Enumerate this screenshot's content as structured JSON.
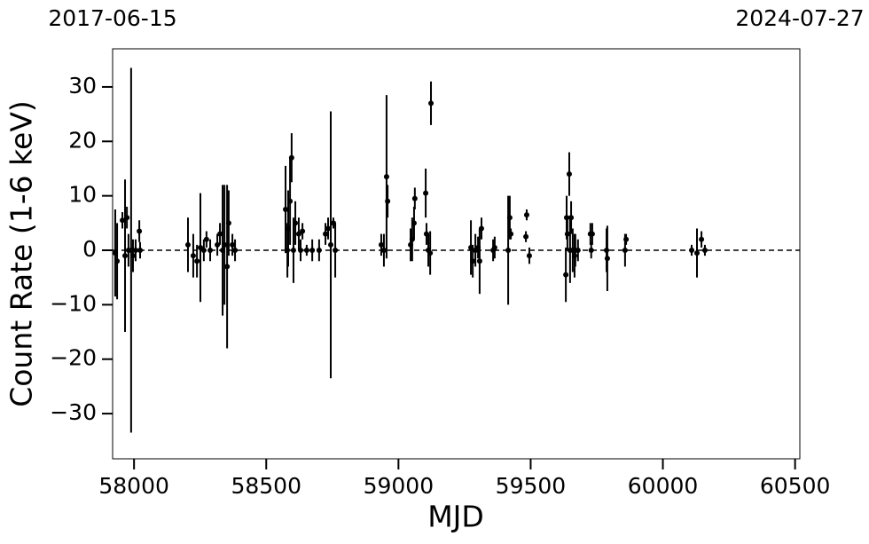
{
  "chart_data": {
    "type": "scatter",
    "xlabel": "MJD",
    "ylabel": "Count Rate (1-6 keV)",
    "xlim": [
      57919,
      60518
    ],
    "ylim": [
      -38.3,
      37.0
    ],
    "xticks": [
      58000,
      58500,
      59000,
      59500,
      60000,
      60500
    ],
    "yticks": [
      {
        "value": -30,
        "label": "−30"
      },
      {
        "value": -20,
        "label": "−20"
      },
      {
        "value": -10,
        "label": "−10"
      },
      0,
      10,
      20,
      30
    ],
    "top_xticks": [
      {
        "value": 57919,
        "label": "2017-06-15"
      },
      {
        "value": 60518,
        "label": "2024-07-27"
      }
    ],
    "reference_line": 0,
    "color": "#000000",
    "series": [
      {
        "x": [
          57929,
          57936,
          57956,
          57966,
          57973,
          57979,
          57989,
          57996,
          58006,
          58020,
          58023,
          58204,
          58224,
          58238,
          58251,
          58264,
          58274,
          58288,
          58315,
          58325,
          58335,
          58342,
          58352,
          58358,
          58372,
          58382,
          58573,
          58580,
          58583,
          58590,
          58596,
          58603,
          58610,
          58623,
          58630,
          58637,
          58653,
          58674,
          58700,
          58724,
          58734,
          58744,
          58754,
          58761,
          58935,
          58945,
          58955,
          58959,
          59046,
          59052,
          59059,
          59062,
          59103,
          59106,
          59113,
          59120,
          59123,
          59274,
          59281,
          59291,
          59301,
          59307,
          59314,
          59358,
          59364,
          59415,
          59421,
          59425,
          59482,
          59485,
          59495,
          59633,
          59636,
          59639,
          59646,
          59649,
          59653,
          59659,
          59666,
          59669,
          59679,
          59726,
          59729,
          59733,
          59787,
          59790,
          59857,
          59861,
          60109,
          60129,
          60146,
          60159
        ],
        "values": [
          -0.5,
          -2,
          5.5,
          -1,
          6,
          0,
          0,
          -1,
          0,
          3.5,
          0,
          1,
          -1,
          -2,
          0.5,
          0,
          2,
          0,
          1,
          3,
          0,
          1,
          -3,
          5,
          1,
          0,
          7.5,
          0,
          4,
          9,
          17,
          0,
          5,
          3,
          0,
          3.5,
          0,
          0,
          0,
          3,
          4,
          1,
          5,
          0,
          1,
          0,
          13.5,
          9,
          1,
          2,
          5,
          9.5,
          10.5,
          3,
          0,
          -0.5,
          27,
          0.5,
          -2,
          0,
          0.5,
          -2,
          4,
          0,
          0.5,
          0,
          6,
          3,
          2.5,
          6.5,
          -1,
          -4.5,
          6,
          3,
          14,
          0,
          6,
          0,
          -1,
          0,
          0,
          3,
          0,
          3,
          0,
          -1.5,
          0,
          2,
          0,
          -0.5,
          2,
          0
        ],
        "errors": [
          8,
          7,
          1.5,
          14,
          2,
          3,
          33.5,
          3,
          2,
          2,
          1.5,
          5,
          4,
          3,
          10,
          2,
          1.5,
          2,
          2,
          2,
          12,
          11,
          15,
          6,
          2,
          2,
          8,
          5,
          7,
          8,
          4.5,
          6,
          4,
          3,
          2,
          1.5,
          1,
          2,
          2,
          2,
          2,
          24.5,
          1,
          5,
          2,
          3,
          15,
          3,
          3,
          4,
          3,
          2,
          4.5,
          2,
          3,
          4,
          4,
          5,
          3,
          3,
          2,
          6,
          2,
          2,
          2,
          10,
          4,
          1,
          1,
          1,
          1.5,
          5,
          4,
          3,
          4,
          6,
          3,
          4,
          4,
          3,
          2,
          2,
          1.5,
          2,
          4,
          6,
          3,
          1,
          1,
          4.5,
          1.5,
          1
        ]
      }
    ]
  }
}
